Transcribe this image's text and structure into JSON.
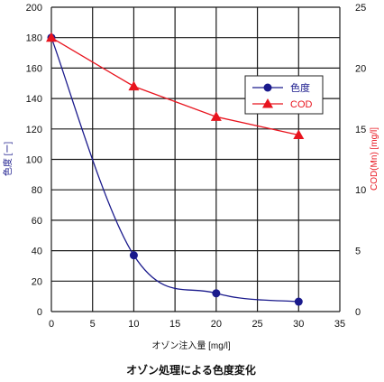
{
  "chart_data": {
    "type": "line",
    "caption": "オゾン処理による色度変化",
    "xlabel": "オゾン注入量 [mg/l]",
    "ylabel_left": "色度 [ー]",
    "ylabel_right": "COD(Mn) [mg/l]",
    "xlim": [
      0,
      35
    ],
    "ylim_left": [
      0,
      200
    ],
    "ylim_right": [
      0,
      25
    ],
    "x_ticks": [
      0,
      5,
      10,
      15,
      20,
      25,
      30,
      35
    ],
    "y_left_ticks": [
      0,
      20,
      40,
      60,
      80,
      100,
      120,
      140,
      160,
      180,
      200
    ],
    "y_right_ticks": [
      0,
      5,
      10,
      15,
      20,
      25
    ],
    "grid": true,
    "legend_position": "upper-right",
    "series": [
      {
        "name": "色度",
        "axis": "left",
        "color": "#1a1a8c",
        "marker": "circle",
        "smooth": true,
        "x": [
          0,
          10,
          20,
          30
        ],
        "y": [
          180,
          37,
          12,
          6.5
        ]
      },
      {
        "name": "COD",
        "axis": "right",
        "color": "#e8141e",
        "marker": "triangle",
        "smooth": false,
        "x": [
          0,
          10,
          20,
          30
        ],
        "y": [
          22.5,
          18.5,
          16,
          14.5
        ]
      }
    ]
  }
}
